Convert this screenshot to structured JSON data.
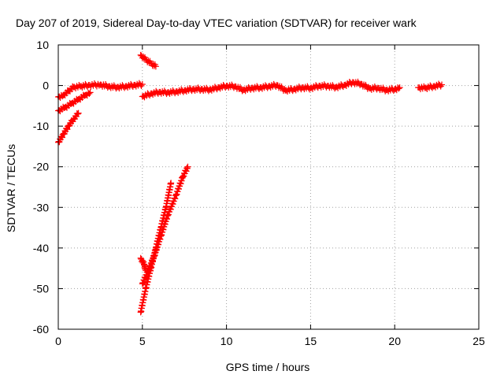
{
  "chart_data": {
    "type": "scatter",
    "title": "Day 207 of 2019, Sidereal Day-to-day VTEC variation (SDTVAR) for receiver wark",
    "xlabel": "GPS time / hours",
    "ylabel": "SDTVAR / TECUs",
    "xlim": [
      0,
      25
    ],
    "ylim": [
      -60,
      10
    ],
    "xticks": [
      0,
      5,
      10,
      15,
      20,
      25
    ],
    "yticks": [
      10,
      0,
      -10,
      -20,
      -30,
      -40,
      -50,
      -60
    ],
    "grid": true,
    "marker": "+",
    "color": "#ff0000",
    "series": [
      {
        "segments": [
          [
            [
              0.0,
              -2.8
            ],
            [
              0.3,
              -2.4
            ],
            [
              0.6,
              -1.4
            ],
            [
              0.9,
              -0.4
            ],
            [
              1.3,
              -0.2
            ],
            [
              1.8,
              0.1
            ],
            [
              2.5,
              0.2
            ],
            [
              3.0,
              -0.2
            ],
            [
              3.5,
              -0.4
            ],
            [
              4.0,
              -0.2
            ],
            [
              4.5,
              0.1
            ],
            [
              5.0,
              0.3
            ]
          ],
          [
            [
              0.0,
              -6.2
            ],
            [
              0.4,
              -5.4
            ],
            [
              0.8,
              -4.4
            ],
            [
              1.2,
              -3.4
            ],
            [
              1.6,
              -2.4
            ],
            [
              1.9,
              -1.7
            ]
          ],
          [
            [
              0.0,
              -14.0
            ],
            [
              0.3,
              -12.0
            ],
            [
              0.6,
              -10.0
            ],
            [
              0.9,
              -8.3
            ],
            [
              1.2,
              -6.8
            ]
          ],
          [
            [
              4.9,
              7.5
            ],
            [
              5.2,
              6.4
            ],
            [
              5.5,
              5.5
            ],
            [
              5.8,
              4.7
            ]
          ],
          [
            [
              5.0,
              -2.7
            ],
            [
              5.5,
              -2.0
            ],
            [
              6.0,
              -1.6
            ],
            [
              6.5,
              -1.7
            ],
            [
              7.0,
              -1.5
            ],
            [
              7.5,
              -1.2
            ],
            [
              8.0,
              -0.9
            ],
            [
              8.5,
              -0.9
            ],
            [
              9.0,
              -1.0
            ],
            [
              9.5,
              -0.5
            ],
            [
              10.0,
              -0.1
            ],
            [
              10.5,
              -0.2
            ],
            [
              11.0,
              -1.1
            ],
            [
              11.5,
              -0.6
            ],
            [
              12.0,
              -0.5
            ],
            [
              12.5,
              -0.2
            ],
            [
              13.0,
              0.1
            ],
            [
              13.5,
              -1.2
            ],
            [
              14.0,
              -0.9
            ],
            [
              14.5,
              -0.5
            ],
            [
              15.0,
              -0.6
            ],
            [
              15.5,
              -0.1
            ],
            [
              16.0,
              -0.1
            ],
            [
              16.5,
              -0.4
            ],
            [
              17.0,
              0.1
            ],
            [
              17.5,
              0.8
            ],
            [
              18.0,
              0.4
            ],
            [
              18.5,
              -0.7
            ],
            [
              19.0,
              -0.6
            ],
            [
              19.5,
              -1.1
            ],
            [
              20.0,
              -0.9
            ],
            [
              20.3,
              -0.5
            ]
          ],
          [
            [
              21.4,
              -0.5
            ],
            [
              21.8,
              -0.6
            ],
            [
              22.3,
              -0.2
            ],
            [
              22.8,
              0.2
            ]
          ],
          [
            [
              4.9,
              -55.8
            ],
            [
              5.2,
              -50.0
            ],
            [
              5.5,
              -45.0
            ],
            [
              5.8,
              -40.0
            ],
            [
              6.1,
              -35.0
            ],
            [
              6.4,
              -30.0
            ],
            [
              6.7,
              -24.0
            ]
          ],
          [
            [
              5.0,
              -48.8
            ],
            [
              5.3,
              -46.0
            ],
            [
              5.7,
              -42.0
            ],
            [
              6.1,
              -37.0
            ],
            [
              6.5,
              -32.0
            ],
            [
              7.0,
              -27.0
            ],
            [
              7.4,
              -22.5
            ],
            [
              7.7,
              -20.0
            ]
          ],
          [
            [
              4.9,
              -42.5
            ],
            [
              5.1,
              -44.0
            ],
            [
              5.2,
              -45.5
            ]
          ]
        ]
      }
    ]
  }
}
